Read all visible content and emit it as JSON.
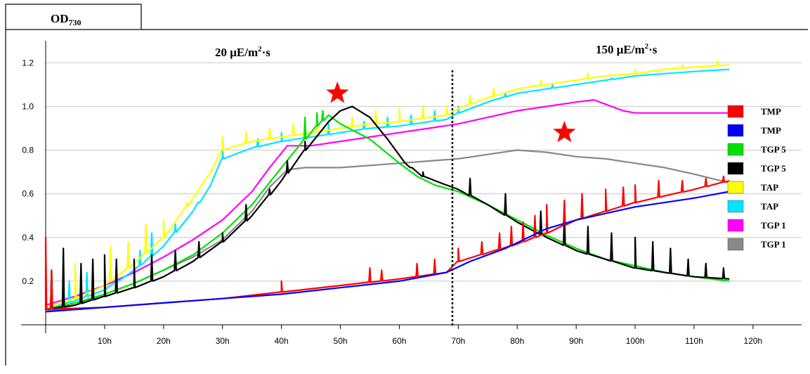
{
  "chart_data": {
    "type": "line",
    "title": "OD730",
    "title_main": "OD",
    "title_sub": "730",
    "annotations": [
      {
        "text_main": "20 μE/m",
        "text_sup": "2",
        "text_end": "·s",
        "x_hours": 24
      },
      {
        "text_main": "150 μE/m",
        "text_sup": "2",
        "text_end": "·s",
        "x_hours": 92
      }
    ],
    "divider_x": 69,
    "stars": [
      {
        "x": 49.5,
        "y": 1.06,
        "color": "#ff0000"
      },
      {
        "x": 88,
        "y": 0.88,
        "color": "#ff0000"
      }
    ],
    "xlim": [
      0,
      128
    ],
    "ylim": [
      0,
      1.32
    ],
    "x_ticks": [
      {
        "v": 10,
        "label": "10h"
      },
      {
        "v": 20,
        "label": "20h"
      },
      {
        "v": 30,
        "label": "30h"
      },
      {
        "v": 40,
        "label": "40h"
      },
      {
        "v": 50,
        "label": "50h"
      },
      {
        "v": 60,
        "label": "60h"
      },
      {
        "v": 70,
        "label": "70h"
      },
      {
        "v": 80,
        "label": "80h"
      },
      {
        "v": 90,
        "label": "90h"
      },
      {
        "v": 100,
        "label": "100h"
      },
      {
        "v": 110,
        "label": "110h"
      },
      {
        "v": 120,
        "label": "120h"
      }
    ],
    "y_ticks": [
      {
        "v": 0.2,
        "label": "0.2"
      },
      {
        "v": 0.4,
        "label": "0.4"
      },
      {
        "v": 0.6,
        "label": "0.6"
      },
      {
        "v": 0.8,
        "label": "0.8"
      },
      {
        "v": 1.0,
        "label": "1.0"
      },
      {
        "v": 1.2,
        "label": "1.2"
      }
    ],
    "grid": true,
    "legend_position": "right",
    "series": [
      {
        "name": "TMP",
        "color": "#ff0000",
        "x": [
          0,
          10,
          20,
          30,
          40,
          50,
          60,
          68,
          70,
          75,
          80,
          85,
          90,
          95,
          100,
          105,
          110,
          116
        ],
        "y": [
          0.07,
          0.08,
          0.1,
          0.12,
          0.15,
          0.18,
          0.21,
          0.24,
          0.29,
          0.33,
          0.37,
          0.42,
          0.48,
          0.52,
          0.56,
          0.59,
          0.62,
          0.66
        ],
        "spikes": [
          [
            0,
            0.4
          ],
          [
            1,
            0.25
          ],
          [
            40,
            0.2
          ],
          [
            55,
            0.26
          ],
          [
            57,
            0.25
          ],
          [
            63,
            0.28
          ],
          [
            66,
            0.3
          ],
          [
            70,
            0.35
          ],
          [
            74,
            0.38
          ],
          [
            77,
            0.42
          ],
          [
            79,
            0.45
          ],
          [
            81,
            0.47
          ],
          [
            83,
            0.5
          ],
          [
            85,
            0.55
          ],
          [
            88,
            0.57
          ],
          [
            91,
            0.6
          ],
          [
            95,
            0.62
          ],
          [
            98,
            0.63
          ],
          [
            100,
            0.64
          ],
          [
            104,
            0.66
          ],
          [
            108,
            0.66
          ],
          [
            112,
            0.67
          ],
          [
            115,
            0.68
          ]
        ]
      },
      {
        "name": "TMP",
        "color": "#0000ff",
        "x": [
          0,
          10,
          20,
          30,
          40,
          50,
          60,
          68,
          72,
          78,
          85,
          90,
          100,
          110,
          116
        ],
        "y": [
          0.06,
          0.08,
          0.1,
          0.12,
          0.14,
          0.17,
          0.2,
          0.24,
          0.29,
          0.35,
          0.44,
          0.48,
          0.54,
          0.58,
          0.61
        ],
        "spikes": []
      },
      {
        "name": "TGP 5",
        "color": "#00e000",
        "x": [
          0,
          5,
          10,
          15,
          20,
          25,
          30,
          35,
          40,
          43,
          46,
          48,
          50,
          55,
          60,
          63,
          66,
          70,
          75,
          80,
          85,
          90,
          95,
          100,
          105,
          110,
          116
        ],
        "y": [
          0.07,
          0.1,
          0.14,
          0.19,
          0.25,
          0.32,
          0.42,
          0.55,
          0.72,
          0.82,
          0.91,
          0.96,
          0.92,
          0.85,
          0.74,
          0.68,
          0.64,
          0.61,
          0.55,
          0.48,
          0.41,
          0.35,
          0.3,
          0.27,
          0.24,
          0.22,
          0.2
        ],
        "spikes": [
          [
            44,
            0.95
          ],
          [
            46,
            0.97
          ],
          [
            47,
            0.98
          ]
        ]
      },
      {
        "name": "TGP 5",
        "color": "#000000",
        "x": [
          0,
          5,
          10,
          15,
          20,
          25,
          30,
          35,
          40,
          44,
          48,
          50,
          52,
          55,
          58,
          61,
          64,
          67,
          70,
          75,
          80,
          85,
          90,
          95,
          100,
          105,
          110,
          116
        ],
        "y": [
          0.07,
          0.09,
          0.13,
          0.17,
          0.22,
          0.29,
          0.38,
          0.5,
          0.66,
          0.8,
          0.93,
          0.98,
          1.0,
          0.95,
          0.85,
          0.74,
          0.68,
          0.65,
          0.62,
          0.55,
          0.47,
          0.4,
          0.34,
          0.3,
          0.26,
          0.24,
          0.22,
          0.21
        ],
        "spikes": [
          [
            1,
            0.25
          ],
          [
            3,
            0.35
          ],
          [
            6,
            0.28
          ],
          [
            8,
            0.3
          ],
          [
            10,
            0.32
          ],
          [
            12,
            0.3
          ],
          [
            15,
            0.3
          ],
          [
            18,
            0.32
          ],
          [
            22,
            0.34
          ],
          [
            26,
            0.38
          ],
          [
            30,
            0.42
          ],
          [
            34,
            0.55
          ],
          [
            38,
            0.62
          ],
          [
            41,
            0.75
          ],
          [
            44,
            0.84
          ],
          [
            62,
            0.72
          ],
          [
            64,
            0.7
          ],
          [
            72,
            0.67
          ],
          [
            78,
            0.6
          ],
          [
            84,
            0.52
          ],
          [
            88,
            0.5
          ],
          [
            92,
            0.45
          ],
          [
            96,
            0.42
          ],
          [
            100,
            0.4
          ],
          [
            103,
            0.38
          ],
          [
            106,
            0.35
          ],
          [
            109,
            0.3
          ],
          [
            112,
            0.28
          ],
          [
            115,
            0.26
          ]
        ]
      },
      {
        "name": "TAP",
        "color": "#ffff00",
        "x": [
          0,
          5,
          10,
          15,
          20,
          25,
          28,
          30,
          35,
          40,
          45,
          50,
          55,
          60,
          65,
          68,
          70,
          75,
          80,
          85,
          90,
          95,
          100,
          105,
          110,
          116
        ],
        "y": [
          0.08,
          0.12,
          0.18,
          0.28,
          0.4,
          0.58,
          0.7,
          0.8,
          0.84,
          0.86,
          0.88,
          0.9,
          0.92,
          0.93,
          0.95,
          0.96,
          0.99,
          1.04,
          1.08,
          1.1,
          1.12,
          1.14,
          1.15,
          1.17,
          1.18,
          1.19
        ],
        "spikes": [
          [
            3,
            0.22
          ],
          [
            5,
            0.28
          ],
          [
            8,
            0.3
          ],
          [
            11,
            0.36
          ],
          [
            14,
            0.38
          ],
          [
            17,
            0.46
          ],
          [
            20,
            0.48
          ],
          [
            24,
            0.56
          ],
          [
            30,
            0.86
          ],
          [
            34,
            0.88
          ],
          [
            38,
            0.9
          ],
          [
            42,
            0.92
          ],
          [
            46,
            0.94
          ],
          [
            52,
            0.95
          ],
          [
            56,
            0.98
          ],
          [
            60,
            0.99
          ],
          [
            64,
            1.0
          ],
          [
            68,
            1.0
          ],
          [
            72,
            1.05
          ],
          [
            76,
            1.08
          ],
          [
            84,
            1.12
          ],
          [
            92,
            1.15
          ],
          [
            100,
            1.17
          ],
          [
            108,
            1.19
          ],
          [
            114,
            1.21
          ]
        ]
      },
      {
        "name": "TAP",
        "color": "#00e5ff",
        "x": [
          0,
          5,
          10,
          15,
          20,
          25,
          28,
          30,
          35,
          40,
          45,
          50,
          55,
          60,
          65,
          68,
          70,
          75,
          80,
          85,
          90,
          95,
          100,
          105,
          110,
          116
        ],
        "y": [
          0.07,
          0.11,
          0.16,
          0.25,
          0.36,
          0.52,
          0.64,
          0.76,
          0.81,
          0.84,
          0.86,
          0.88,
          0.9,
          0.91,
          0.93,
          0.94,
          0.97,
          1.02,
          1.06,
          1.08,
          1.1,
          1.12,
          1.14,
          1.15,
          1.16,
          1.17
        ],
        "spikes": [
          [
            4,
            0.2
          ],
          [
            7,
            0.24
          ],
          [
            12,
            0.28
          ],
          [
            16,
            0.34
          ],
          [
            18,
            0.42
          ],
          [
            22,
            0.46
          ],
          [
            26,
            0.56
          ],
          [
            30,
            0.8
          ],
          [
            36,
            0.85
          ],
          [
            40,
            0.88
          ],
          [
            44,
            0.9
          ],
          [
            48,
            0.92
          ],
          [
            54,
            0.93
          ],
          [
            58,
            0.95
          ],
          [
            62,
            0.96
          ],
          [
            66,
            0.98
          ],
          [
            70,
            1.0
          ],
          [
            78,
            1.06
          ],
          [
            86,
            1.1
          ],
          [
            96,
            1.13
          ]
        ]
      },
      {
        "name": "TGP 1",
        "color": "#ff00ff",
        "x": [
          0,
          5,
          10,
          15,
          20,
          25,
          30,
          35,
          38,
          41,
          45,
          50,
          55,
          60,
          65,
          70,
          75,
          80,
          85,
          90,
          93,
          95,
          98,
          100,
          105,
          110,
          116
        ],
        "y": [
          0.09,
          0.13,
          0.18,
          0.24,
          0.31,
          0.39,
          0.48,
          0.61,
          0.72,
          0.82,
          0.82,
          0.84,
          0.86,
          0.88,
          0.9,
          0.92,
          0.95,
          0.98,
          1.0,
          1.02,
          1.03,
          1.01,
          0.98,
          0.97,
          0.97,
          0.97,
          0.97
        ],
        "spikes": []
      },
      {
        "name": "TGP 1",
        "color": "#888888",
        "x": [
          0,
          5,
          10,
          15,
          20,
          25,
          30,
          35,
          38,
          41,
          44,
          50,
          55,
          60,
          65,
          70,
          75,
          80,
          85,
          90,
          95,
          100,
          105,
          110,
          116
        ],
        "y": [
          0.06,
          0.09,
          0.14,
          0.19,
          0.25,
          0.31,
          0.39,
          0.52,
          0.63,
          0.71,
          0.72,
          0.72,
          0.73,
          0.74,
          0.75,
          0.76,
          0.78,
          0.8,
          0.79,
          0.77,
          0.76,
          0.74,
          0.72,
          0.69,
          0.65
        ],
        "spikes": []
      }
    ]
  }
}
